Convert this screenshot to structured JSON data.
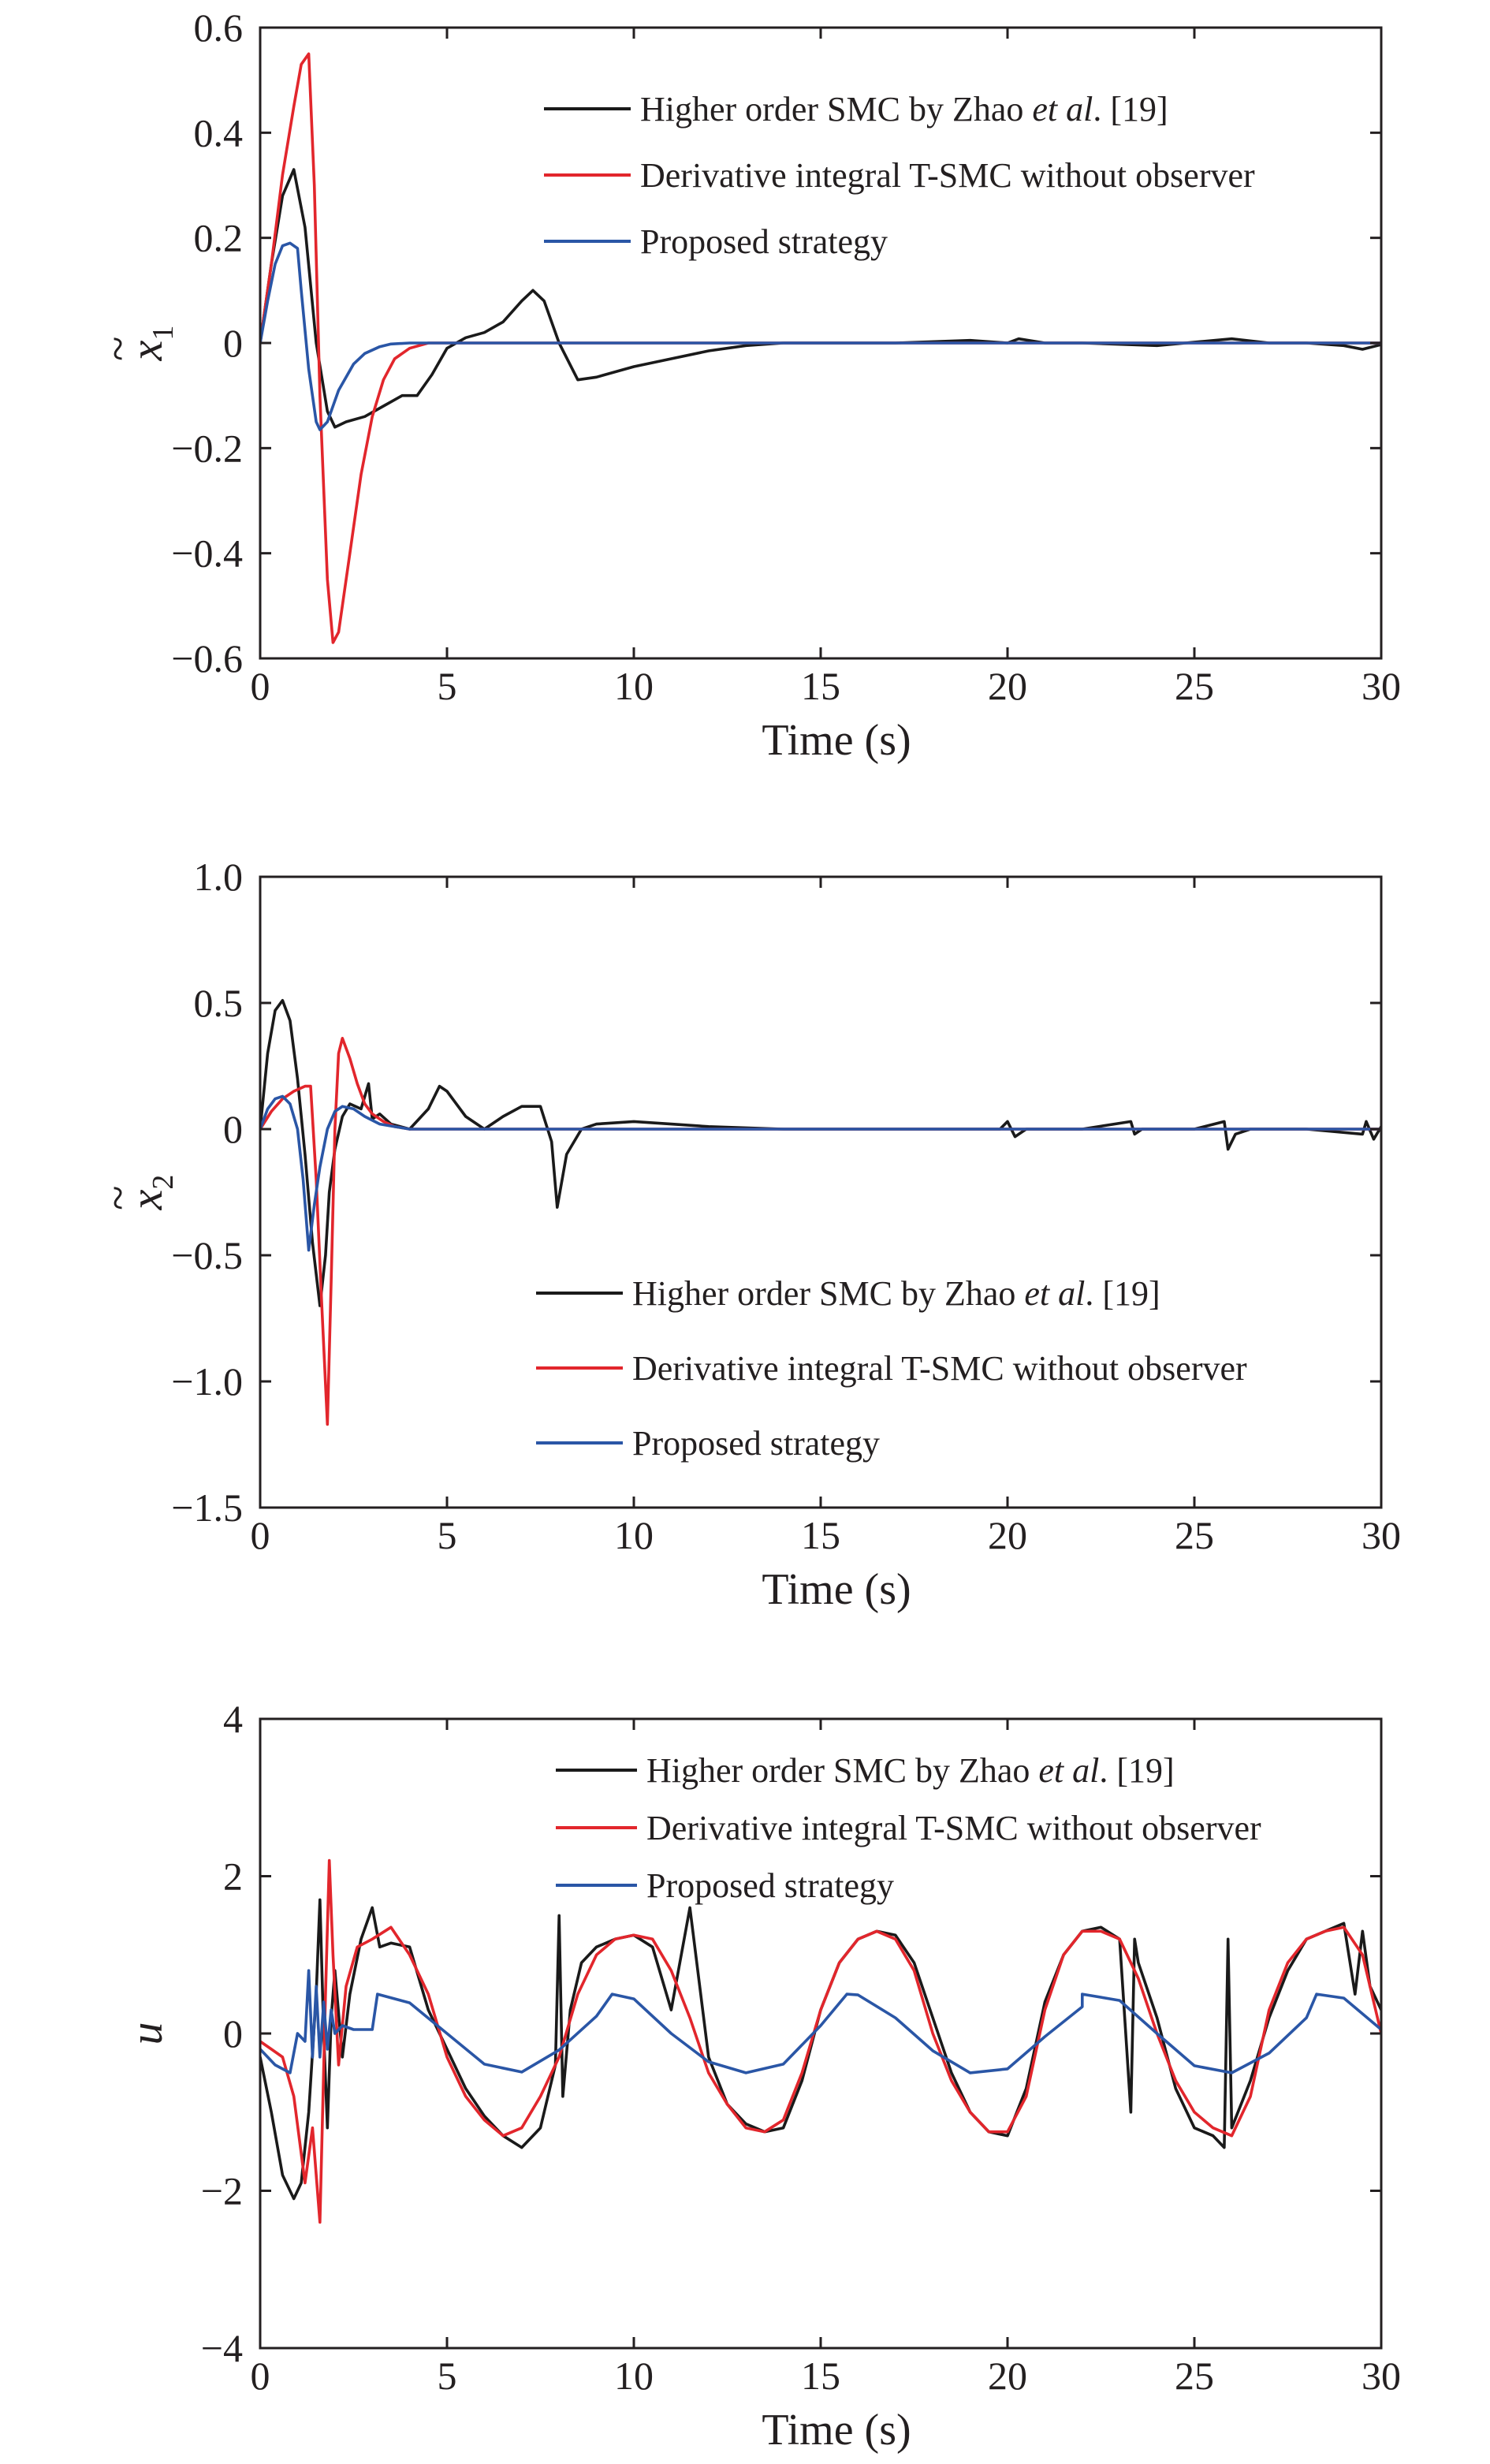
{
  "chart_data": [
    {
      "type": "line",
      "ylabel": "x̃1",
      "ylabel_parts": {
        "tilde": "~",
        "base": "x",
        "sub": "1"
      },
      "xlabel": "Time (s)",
      "xlim": [
        0,
        30
      ],
      "ylim": [
        -0.6,
        0.6
      ],
      "xticks": [
        0,
        5,
        10,
        15,
        20,
        25,
        30
      ],
      "xtick_labels": [
        "0",
        "5",
        "10",
        "15",
        "20",
        "25",
        "30"
      ],
      "yticks": [
        0.6,
        0.4,
        0.2,
        0,
        -0.2,
        -0.4,
        -0.6
      ],
      "ytick_labels": [
        "0.6",
        "0.4",
        "0.2",
        "0",
        "−0.2",
        "−0.4",
        "−0.6"
      ],
      "grid": false,
      "legend_position": "top-right",
      "series": [
        {
          "name": "Higher order SMC by Zhao et al. [19]",
          "legend_parts": [
            "Higher order SMC by Zhao ",
            "et al",
            ". [19]"
          ],
          "color": "#1a1a1a",
          "x": [
            0,
            0.3,
            0.6,
            0.9,
            1.2,
            1.5,
            1.8,
            2.0,
            2.3,
            2.8,
            3.3,
            3.8,
            4.2,
            4.6,
            5.0,
            5.5,
            6.0,
            6.5,
            7.0,
            7.3,
            7.6,
            8.0,
            8.5,
            9.0,
            10.0,
            11.0,
            12.0,
            13.0,
            14.0,
            15.0,
            17.0,
            19.0,
            20.0,
            20.3,
            21.0,
            22.0,
            24.0,
            26.0,
            27.0,
            28.0,
            29.0,
            29.5,
            30.0
          ],
          "y": [
            0,
            0.15,
            0.28,
            0.33,
            0.22,
            0.0,
            -0.13,
            -0.16,
            -0.15,
            -0.14,
            -0.12,
            -0.1,
            -0.1,
            -0.06,
            -0.01,
            0.01,
            0.02,
            0.04,
            0.08,
            0.1,
            0.08,
            0.0,
            -0.07,
            -0.065,
            -0.045,
            -0.03,
            -0.015,
            -0.005,
            0.0,
            0.0,
            0.0,
            0.005,
            0.0,
            0.008,
            0.0,
            0.0,
            -0.005,
            0.008,
            0.0,
            0.0,
            -0.005,
            -0.012,
            -0.003
          ]
        },
        {
          "name": "Derivative integral T-SMC without observer",
          "legend_parts": [
            "Derivative integral T-SMC without observer"
          ],
          "color": "#e2262c",
          "x": [
            0,
            0.3,
            0.6,
            0.9,
            1.1,
            1.3,
            1.45,
            1.6,
            1.8,
            1.95,
            2.1,
            2.4,
            2.7,
            3.0,
            3.3,
            3.6,
            4.0,
            4.5,
            5.0,
            6.0,
            10.0,
            20.0,
            30.0
          ],
          "y": [
            0,
            0.15,
            0.32,
            0.45,
            0.53,
            0.55,
            0.3,
            -0.1,
            -0.45,
            -0.57,
            -0.55,
            -0.4,
            -0.25,
            -0.14,
            -0.07,
            -0.03,
            -0.01,
            0.0,
            0.0,
            0.0,
            0.0,
            0.0,
            0.0
          ]
        },
        {
          "name": "Proposed strategy",
          "legend_parts": [
            "Proposed strategy"
          ],
          "color": "#2a56a6",
          "x": [
            0,
            0.2,
            0.4,
            0.6,
            0.8,
            1.0,
            1.1,
            1.3,
            1.5,
            1.6,
            1.8,
            2.1,
            2.5,
            2.8,
            3.2,
            3.5,
            4.0,
            5.0,
            10.0,
            20.0,
            30.0
          ],
          "y": [
            0,
            0.08,
            0.15,
            0.185,
            0.19,
            0.18,
            0.1,
            -0.05,
            -0.15,
            -0.165,
            -0.15,
            -0.09,
            -0.04,
            -0.02,
            -0.007,
            -0.002,
            0.0,
            0.0,
            0.0,
            0.0,
            0.0
          ]
        }
      ]
    },
    {
      "type": "line",
      "ylabel": "x̃2",
      "ylabel_parts": {
        "tilde": "~",
        "base": "x",
        "sub": "2"
      },
      "xlabel": "Time (s)",
      "xlim": [
        0,
        30
      ],
      "ylim": [
        -1.5,
        1.0
      ],
      "xticks": [
        0,
        5,
        10,
        15,
        20,
        25,
        30
      ],
      "xtick_labels": [
        "0",
        "5",
        "10",
        "15",
        "20",
        "25",
        "30"
      ],
      "yticks": [
        1.0,
        0.5,
        0,
        -0.5,
        -1.0,
        -1.5
      ],
      "ytick_labels": [
        "1.0",
        "0.5",
        "0",
        "−0.5",
        "−1.0",
        "−1.5"
      ],
      "grid": false,
      "legend_position": "bottom-right",
      "series": [
        {
          "name": "Higher order SMC by Zhao et al. [19]",
          "legend_parts": [
            "Higher order SMC by Zhao ",
            "et al",
            ". [19]"
          ],
          "color": "#1a1a1a",
          "x": [
            0,
            0.2,
            0.4,
            0.6,
            0.8,
            1.0,
            1.2,
            1.4,
            1.6,
            1.75,
            1.85,
            2.0,
            2.2,
            2.4,
            2.7,
            2.9,
            3.0,
            3.2,
            3.5,
            4.0,
            4.5,
            4.8,
            5.0,
            5.5,
            6.0,
            6.5,
            7.0,
            7.5,
            7.8,
            7.95,
            8.2,
            8.6,
            9.0,
            10.0,
            11.0,
            12.0,
            14.0,
            16.0,
            18.0,
            19.8,
            20.0,
            20.2,
            20.5,
            22.0,
            23.3,
            23.4,
            23.6,
            25.0,
            25.8,
            25.9,
            26.1,
            26.5,
            28.0,
            29.5,
            29.6,
            29.8,
            30.0
          ],
          "y": [
            0,
            0.3,
            0.47,
            0.51,
            0.43,
            0.2,
            -0.1,
            -0.45,
            -0.7,
            -0.5,
            -0.25,
            -0.08,
            0.05,
            0.1,
            0.08,
            0.18,
            0.04,
            0.06,
            0.02,
            0.0,
            0.08,
            0.17,
            0.15,
            0.05,
            0.0,
            0.05,
            0.09,
            0.09,
            -0.05,
            -0.31,
            -0.1,
            0.0,
            0.02,
            0.03,
            0.02,
            0.01,
            0.0,
            0.0,
            0.0,
            0.0,
            0.03,
            -0.03,
            0.0,
            0.0,
            0.03,
            -0.02,
            0.0,
            0.0,
            0.03,
            -0.08,
            -0.02,
            0.0,
            0.0,
            -0.02,
            0.03,
            -0.04,
            0.01
          ]
        },
        {
          "name": "Derivative integral T-SMC without observer",
          "legend_parts": [
            "Derivative integral T-SMC without observer"
          ],
          "color": "#e2262c",
          "x": [
            0,
            0.3,
            0.6,
            0.9,
            1.2,
            1.35,
            1.5,
            1.65,
            1.8,
            1.9,
            2.0,
            2.1,
            2.2,
            2.4,
            2.6,
            2.8,
            3.0,
            3.3,
            3.6,
            4.0,
            5.0,
            10.0,
            20.0,
            30.0
          ],
          "y": [
            0,
            0.07,
            0.12,
            0.15,
            0.17,
            0.17,
            -0.2,
            -0.7,
            -1.17,
            -0.6,
            0.0,
            0.3,
            0.36,
            0.28,
            0.18,
            0.1,
            0.06,
            0.03,
            0.01,
            0.0,
            0.0,
            0.0,
            0.0,
            0.0
          ]
        },
        {
          "name": "Proposed strategy",
          "legend_parts": [
            "Proposed strategy"
          ],
          "color": "#2a56a6",
          "x": [
            0,
            0.2,
            0.4,
            0.6,
            0.8,
            1.0,
            1.15,
            1.3,
            1.45,
            1.6,
            1.8,
            2.0,
            2.2,
            2.5,
            2.8,
            3.2,
            3.6,
            4.0,
            5.0,
            10.0,
            20.0,
            30.0
          ],
          "y": [
            0,
            0.08,
            0.12,
            0.13,
            0.1,
            0.0,
            -0.2,
            -0.48,
            -0.3,
            -0.15,
            0.0,
            0.07,
            0.09,
            0.08,
            0.05,
            0.02,
            0.01,
            0.0,
            0.0,
            0.0,
            0.0,
            0.0
          ]
        }
      ]
    },
    {
      "type": "line",
      "ylabel": "u",
      "ylabel_parts": {
        "tilde": "",
        "base": "u",
        "sub": ""
      },
      "xlabel": "Time (s)",
      "xlim": [
        0,
        30
      ],
      "ylim": [
        -4,
        4
      ],
      "xticks": [
        0,
        5,
        10,
        15,
        20,
        25,
        30
      ],
      "xtick_labels": [
        "0",
        "5",
        "10",
        "15",
        "20",
        "25",
        "30"
      ],
      "yticks": [
        4,
        2,
        0,
        -2,
        -4
      ],
      "ytick_labels": [
        "4",
        "2",
        "0",
        "−2",
        "−4"
      ],
      "grid": false,
      "legend_position": "top-right",
      "series": [
        {
          "name": "Higher order SMC by Zhao et al. [19]",
          "legend_parts": [
            "Higher order SMC by Zhao ",
            "et al",
            ". [19]"
          ],
          "color": "#1a1a1a",
          "x": [
            0,
            0.3,
            0.6,
            0.9,
            1.1,
            1.3,
            1.5,
            1.6,
            1.7,
            1.8,
            1.9,
            2.0,
            2.2,
            2.4,
            2.7,
            3.0,
            3.2,
            3.5,
            4.0,
            4.5,
            5.0,
            5.5,
            6.0,
            6.5,
            7.0,
            7.5,
            7.9,
            8.0,
            8.1,
            8.3,
            8.6,
            9.0,
            9.5,
            10.0,
            10.5,
            11.0,
            11.5,
            12.0,
            12.5,
            13.0,
            13.5,
            14.0,
            14.5,
            15.0,
            15.5,
            16.0,
            16.5,
            17.0,
            17.5,
            18.0,
            18.5,
            19.0,
            19.5,
            20.0,
            20.5,
            21.0,
            21.5,
            22.0,
            22.5,
            23.0,
            23.3,
            23.4,
            23.5,
            24.0,
            24.5,
            25.0,
            25.5,
            25.8,
            25.9,
            26.0,
            26.5,
            27.0,
            27.5,
            28.0,
            28.5,
            29.0,
            29.3,
            29.5,
            29.7,
            30.0
          ],
          "y": [
            -0.3,
            -1.0,
            -1.8,
            -2.1,
            -1.9,
            -1.0,
            0.5,
            1.7,
            0.0,
            -1.2,
            0.2,
            0.8,
            -0.3,
            0.5,
            1.2,
            1.6,
            1.1,
            1.15,
            1.1,
            0.3,
            -0.2,
            -0.7,
            -1.05,
            -1.3,
            -1.45,
            -1.2,
            -0.4,
            1.5,
            -0.8,
            0.3,
            0.9,
            1.1,
            1.2,
            1.25,
            1.1,
            0.3,
            1.6,
            -0.3,
            -0.9,
            -1.15,
            -1.25,
            -1.2,
            -0.6,
            0.3,
            0.9,
            1.2,
            1.3,
            1.25,
            0.9,
            0.2,
            -0.5,
            -1.0,
            -1.25,
            -1.3,
            -0.7,
            0.4,
            1.0,
            1.3,
            1.35,
            1.2,
            -1.0,
            1.2,
            0.9,
            0.2,
            -0.7,
            -1.2,
            -1.3,
            -1.45,
            1.2,
            -1.2,
            -0.6,
            0.2,
            0.8,
            1.2,
            1.3,
            1.4,
            0.5,
            1.3,
            0.6,
            0.3
          ]
        },
        {
          "name": "Derivative integral T-SMC without observer",
          "legend_parts": [
            "Derivative integral T-SMC without observer"
          ],
          "color": "#e2262c",
          "x": [
            0,
            0.3,
            0.6,
            0.9,
            1.2,
            1.4,
            1.6,
            1.75,
            1.85,
            1.95,
            2.1,
            2.3,
            2.6,
            3.0,
            3.5,
            4.0,
            4.5,
            5.0,
            5.5,
            6.0,
            6.5,
            7.0,
            7.5,
            8.0,
            8.5,
            9.0,
            9.5,
            10.0,
            10.5,
            11.0,
            11.5,
            12.0,
            12.5,
            13.0,
            13.5,
            14.0,
            14.5,
            15.0,
            15.5,
            16.0,
            16.5,
            17.0,
            17.5,
            18.0,
            18.5,
            19.0,
            19.5,
            20.0,
            20.5,
            21.0,
            21.5,
            22.0,
            22.5,
            23.0,
            23.5,
            24.0,
            24.5,
            25.0,
            25.5,
            26.0,
            26.5,
            27.0,
            27.5,
            28.0,
            28.5,
            29.0,
            29.5,
            30.0
          ],
          "y": [
            -0.1,
            -0.2,
            -0.3,
            -0.8,
            -1.9,
            -1.2,
            -2.4,
            0.5,
            2.2,
            1.0,
            -0.4,
            0.6,
            1.1,
            1.2,
            1.35,
            1.0,
            0.5,
            -0.3,
            -0.8,
            -1.1,
            -1.3,
            -1.2,
            -0.8,
            -0.3,
            0.5,
            1.0,
            1.2,
            1.25,
            1.2,
            0.8,
            0.2,
            -0.5,
            -0.9,
            -1.2,
            -1.25,
            -1.1,
            -0.5,
            0.3,
            0.9,
            1.2,
            1.3,
            1.2,
            0.8,
            0.0,
            -0.6,
            -1.0,
            -1.25,
            -1.25,
            -0.8,
            0.3,
            1.0,
            1.3,
            1.3,
            1.2,
            0.7,
            0.0,
            -0.6,
            -1.0,
            -1.2,
            -1.3,
            -0.8,
            0.3,
            0.9,
            1.2,
            1.3,
            1.35,
            1.0,
            0.0
          ]
        },
        {
          "name": "Proposed strategy",
          "legend_parts": [
            "Proposed strategy"
          ],
          "color": "#2a56a6",
          "x": [
            0,
            0.4,
            0.8,
            1.0,
            1.2,
            1.3,
            1.4,
            1.5,
            1.6,
            1.7,
            1.8,
            1.9,
            2.0,
            2.2,
            2.5,
            3.0,
            3.14,
            4.0,
            5.0,
            6.0,
            7.0,
            8.0,
            9.0,
            9.42,
            10.0,
            11.0,
            12.0,
            13.0,
            14.0,
            15.0,
            15.7,
            16.0,
            17.0,
            18.0,
            19.0,
            20.0,
            21.0,
            22.0,
            22.0,
            23.0,
            24.0,
            25.0,
            26.0,
            27.0,
            28.0,
            28.27,
            29.0,
            30.0
          ],
          "y": [
            -0.2,
            -0.4,
            -0.5,
            0.0,
            -0.1,
            0.8,
            -0.3,
            0.6,
            -0.3,
            0.4,
            -0.2,
            0.3,
            0.0,
            0.1,
            0.05,
            0.05,
            0.5,
            0.39,
            0.0,
            -0.39,
            -0.49,
            -0.21,
            0.22,
            0.5,
            0.44,
            0.0,
            -0.36,
            -0.5,
            -0.39,
            0.1,
            0.5,
            0.49,
            0.2,
            -0.22,
            -0.5,
            -0.45,
            -0.04,
            0.34,
            0.5,
            0.42,
            0.0,
            -0.41,
            -0.5,
            -0.25,
            0.2,
            0.5,
            0.45,
            0.05
          ]
        }
      ]
    }
  ]
}
